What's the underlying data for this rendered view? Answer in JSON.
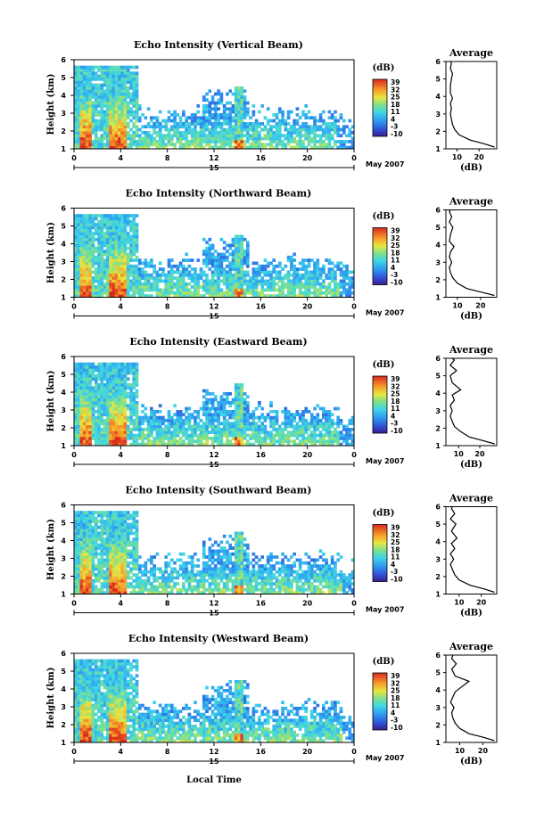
{
  "figure": {
    "xlabel": "Local Time",
    "date_label": "May 2007",
    "colorbar_unit": "(dB)",
    "avg_title": "Average",
    "avg_xlabel": "(dB)"
  },
  "chart_data": [
    {
      "type": "heatmap",
      "title": "Echo Intensity (Vertical Beam)",
      "ylabel": "Height (km)",
      "xlabel": "",
      "x_ticks": [
        "0",
        "4",
        "8",
        "12",
        "16",
        "20",
        "0"
      ],
      "day_label": "15",
      "y_ticks": [
        "1",
        "2",
        "3",
        "4",
        "5",
        "6"
      ],
      "xlim": [
        0,
        24
      ],
      "ylim": [
        1,
        6
      ],
      "colorbar": {
        "label": "(dB)",
        "range": [
          -10,
          39
        ],
        "ticks": [
          "39",
          "32",
          "25",
          "18",
          "11",
          "4",
          "-3",
          "-10"
        ]
      },
      "date": "May 2007"
    },
    {
      "type": "line",
      "title": "Average",
      "xlabel": "(dB)",
      "ylabel": "",
      "x_ticks": [
        "10",
        "20"
      ],
      "y_ticks": [
        "1",
        "2",
        "3",
        "4",
        "5",
        "6"
      ],
      "xlim": [
        5,
        28
      ],
      "ylim": [
        1,
        6
      ],
      "series": [
        {
          "x": [
            27,
            22,
            16,
            11,
            9,
            8,
            7.5,
            7,
            7.5,
            7,
            8,
            7,
            7,
            7.5,
            8,
            7,
            7.5,
            7
          ],
          "y": [
            1.1,
            1.3,
            1.5,
            1.8,
            2.1,
            2.4,
            2.7,
            3.0,
            3.3,
            3.6,
            3.9,
            4.2,
            4.6,
            5.0,
            5.3,
            5.6,
            5.9,
            6.0
          ]
        }
      ]
    },
    {
      "type": "heatmap",
      "title": "Echo Intensity (Northward Beam)",
      "ylabel": "Height (km)",
      "xlabel": "",
      "x_ticks": [
        "0",
        "4",
        "8",
        "12",
        "16",
        "20",
        "0"
      ],
      "day_label": "15",
      "y_ticks": [
        "1",
        "2",
        "3",
        "4",
        "5",
        "6"
      ],
      "xlim": [
        0,
        24
      ],
      "ylim": [
        1,
        6
      ],
      "colorbar": {
        "label": "(dB)",
        "range": [
          -10,
          39
        ],
        "ticks": [
          "39",
          "32",
          "25",
          "18",
          "11",
          "4",
          "-3",
          "-10"
        ]
      },
      "date": "May 2007"
    },
    {
      "type": "line",
      "title": "Average",
      "xlabel": "(dB)",
      "ylabel": "",
      "x_ticks": [
        "10",
        "20"
      ],
      "y_ticks": [
        "1",
        "2",
        "3",
        "4",
        "5",
        "6"
      ],
      "xlim": [
        5,
        27
      ],
      "ylim": [
        1,
        6
      ],
      "series": [
        {
          "x": [
            26,
            20,
            14,
            10,
            8,
            7,
            6.5,
            7.5,
            6.5,
            7,
            8.5,
            6.5,
            7,
            8,
            6.5,
            7.5,
            6.5,
            7
          ],
          "y": [
            1.1,
            1.3,
            1.5,
            1.8,
            2.1,
            2.4,
            2.7,
            3.0,
            3.3,
            3.6,
            3.9,
            4.2,
            4.6,
            5.0,
            5.3,
            5.6,
            5.9,
            6.0
          ]
        }
      ]
    },
    {
      "type": "heatmap",
      "title": "Echo Intensity (Eastward Beam)",
      "ylabel": "Height (km)",
      "xlabel": "",
      "x_ticks": [
        "0",
        "4",
        "8",
        "12",
        "16",
        "20",
        "0"
      ],
      "day_label": "15",
      "y_ticks": [
        "1",
        "2",
        "3",
        "4",
        "5",
        "6"
      ],
      "xlim": [
        0,
        24
      ],
      "ylim": [
        1,
        6
      ],
      "colorbar": {
        "label": "(dB)",
        "range": [
          -10,
          39
        ],
        "ticks": [
          "39",
          "32",
          "25",
          "18",
          "11",
          "4",
          "-3",
          "-10"
        ]
      },
      "date": "May 2007"
    },
    {
      "type": "line",
      "title": "Average",
      "xlabel": "(dB)",
      "ylabel": "",
      "x_ticks": [
        "10",
        "20"
      ],
      "y_ticks": [
        "1",
        "2",
        "3",
        "4",
        "5",
        "6"
      ],
      "xlim": [
        4,
        28
      ],
      "ylim": [
        1,
        6
      ],
      "series": [
        {
          "x": [
            27,
            21,
            15,
            11,
            8,
            7,
            6,
            7,
            6,
            8,
            7,
            11,
            7,
            6,
            9,
            6,
            8,
            7
          ],
          "y": [
            1.1,
            1.3,
            1.5,
            1.8,
            2.1,
            2.4,
            2.7,
            3.0,
            3.3,
            3.6,
            3.9,
            4.2,
            4.6,
            5.0,
            5.3,
            5.6,
            5.9,
            6.0
          ]
        }
      ]
    },
    {
      "type": "heatmap",
      "title": "Echo Intensity (Southward Beam)",
      "ylabel": "Height (km)",
      "xlabel": "",
      "x_ticks": [
        "0",
        "4",
        "8",
        "12",
        "16",
        "20",
        "0"
      ],
      "day_label": "15",
      "y_ticks": [
        "1",
        "2",
        "3",
        "4",
        "5",
        "6"
      ],
      "xlim": [
        0,
        24
      ],
      "ylim": [
        1,
        6
      ],
      "colorbar": {
        "label": "(dB)",
        "range": [
          -10,
          39
        ],
        "ticks": [
          "39",
          "32",
          "25",
          "18",
          "11",
          "4",
          "-3",
          "-10"
        ]
      },
      "date": "May 2007"
    },
    {
      "type": "line",
      "title": "Average",
      "xlabel": "(dB)",
      "ylabel": "",
      "x_ticks": [
        "10",
        "20"
      ],
      "y_ticks": [
        "1",
        "2",
        "3",
        "4",
        "5",
        "6"
      ],
      "xlim": [
        4,
        27
      ],
      "ylim": [
        1,
        6
      ],
      "series": [
        {
          "x": [
            26,
            21,
            15,
            10,
            8,
            7,
            6,
            7.5,
            6,
            8,
            6.5,
            9,
            6.5,
            8.5,
            6,
            8,
            6.5,
            7
          ],
          "y": [
            1.1,
            1.3,
            1.5,
            1.8,
            2.1,
            2.4,
            2.7,
            3.0,
            3.3,
            3.6,
            3.9,
            4.2,
            4.6,
            5.0,
            5.3,
            5.6,
            5.9,
            6.0
          ]
        }
      ]
    },
    {
      "type": "heatmap",
      "title": "Echo Intensity (Westward Beam)",
      "ylabel": "Height (km)",
      "xlabel": "Local Time",
      "x_ticks": [
        "0",
        "4",
        "8",
        "12",
        "16",
        "20",
        "0"
      ],
      "day_label": "15",
      "y_ticks": [
        "1",
        "2",
        "3",
        "4",
        "5",
        "6"
      ],
      "xlim": [
        0,
        24
      ],
      "ylim": [
        1,
        6
      ],
      "colorbar": {
        "label": "(dB)",
        "range": [
          -10,
          39
        ],
        "ticks": [
          "39",
          "32",
          "25",
          "18",
          "11",
          "4",
          "-3",
          "-10"
        ]
      },
      "date": "May 2007"
    },
    {
      "type": "line",
      "title": "Average",
      "xlabel": "(dB)",
      "ylabel": "",
      "x_ticks": [
        "10",
        "20"
      ],
      "y_ticks": [
        "1",
        "2",
        "3",
        "4",
        "5",
        "6"
      ],
      "xlim": [
        4,
        26
      ],
      "ylim": [
        1,
        6
      ],
      "series": [
        {
          "x": [
            25,
            20,
            14,
            10,
            8,
            7,
            6.5,
            7.5,
            6,
            7,
            8,
            11,
            14,
            8,
            6.5,
            8.5,
            6.5,
            7
          ],
          "y": [
            1.1,
            1.3,
            1.5,
            1.8,
            2.1,
            2.4,
            2.7,
            3.0,
            3.3,
            3.6,
            3.9,
            4.2,
            4.5,
            4.8,
            5.2,
            5.5,
            5.8,
            6.0
          ]
        }
      ]
    }
  ]
}
